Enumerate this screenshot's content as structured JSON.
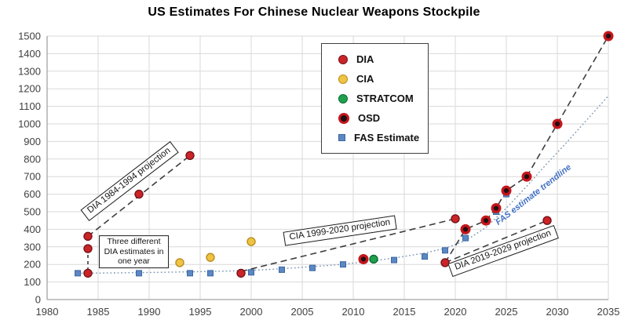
{
  "chart_data": {
    "type": "scatter",
    "title": "US Estimates For Chinese Nuclear Weapons Stockpile",
    "xlabel": "",
    "ylabel": "",
    "grid": true,
    "legend_position": "inside-top-center",
    "x_axis": {
      "min": 1980,
      "max": 2035,
      "tick_step": 5,
      "ticks": [
        1980,
        1985,
        1990,
        1995,
        2000,
        2005,
        2010,
        2015,
        2020,
        2025,
        2030,
        2035
      ]
    },
    "y_axis": {
      "min": 0,
      "max": 1500,
      "tick_step": 100,
      "ticks": [
        0,
        100,
        200,
        300,
        400,
        500,
        600,
        700,
        800,
        900,
        1000,
        1100,
        1200,
        1300,
        1400,
        1500
      ]
    },
    "colors": {
      "grid": "#d9d9d9",
      "axis": "#a3a3a3",
      "tick_text": "#404040",
      "projection_dash": "#3d3d3d",
      "trendline": "#7e99b6",
      "annotation_blue": "#4472c4"
    },
    "series": [
      {
        "name": "DIA",
        "marker": "circle",
        "color": "#cb2428",
        "edge": "#77131a",
        "points": [
          {
            "x": 1984,
            "y": 360
          },
          {
            "x": 1984,
            "y": 290
          },
          {
            "x": 1984,
            "y": 150
          },
          {
            "x": 1989,
            "y": 600
          },
          {
            "x": 1994,
            "y": 820
          },
          {
            "x": 1999,
            "y": 150
          },
          {
            "x": 2019,
            "y": 210
          },
          {
            "x": 2020,
            "y": 460
          },
          {
            "x": 2029,
            "y": 450
          }
        ]
      },
      {
        "name": "CIA",
        "marker": "circle",
        "color": "#efc343",
        "edge": "#bb8d20",
        "points": [
          {
            "x": 1993,
            "y": 210
          },
          {
            "x": 1996,
            "y": 240
          },
          {
            "x": 2000,
            "y": 330
          }
        ]
      },
      {
        "name": "STRATCOM",
        "marker": "circle",
        "color": "#1fa04d",
        "edge": "#0c6b33",
        "points": [
          {
            "x": 2012,
            "y": 230
          }
        ]
      },
      {
        "name": "OSD",
        "marker": "ring-circle",
        "color": "#200f12",
        "edge": "#c4161c",
        "points": [
          {
            "x": 2011,
            "y": 230
          },
          {
            "x": 2021,
            "y": 400
          },
          {
            "x": 2023,
            "y": 450
          },
          {
            "x": 2024,
            "y": 520
          },
          {
            "x": 2025,
            "y": 620
          },
          {
            "x": 2027,
            "y": 700
          },
          {
            "x": 2030,
            "y": 1000
          },
          {
            "x": 2035,
            "y": 1500
          }
        ]
      },
      {
        "name": "FAS Estimate",
        "marker": "square",
        "color": "#5b87c3",
        "edge": "#3c67a2",
        "points": [
          {
            "x": 1983,
            "y": 150
          },
          {
            "x": 1989,
            "y": 150
          },
          {
            "x": 1994,
            "y": 150
          },
          {
            "x": 1996,
            "y": 150
          },
          {
            "x": 2000,
            "y": 155
          },
          {
            "x": 2003,
            "y": 170
          },
          {
            "x": 2006,
            "y": 180
          },
          {
            "x": 2009,
            "y": 200
          },
          {
            "x": 2014,
            "y": 225
          },
          {
            "x": 2017,
            "y": 245
          },
          {
            "x": 2019,
            "y": 280
          },
          {
            "x": 2021,
            "y": 350
          },
          {
            "x": 2024,
            "y": 500
          },
          {
            "x": 2025,
            "y": 600
          }
        ]
      }
    ],
    "projection_lines": [
      {
        "name": "DIA 1984-1994 projection line",
        "dash": "8 5",
        "points": [
          [
            1984,
            360
          ],
          [
            1994,
            820
          ]
        ]
      },
      {
        "name": "DIA 1984 estimates connector",
        "dash": "4 4",
        "points": [
          [
            1984,
            290
          ],
          [
            1984,
            150
          ]
        ]
      },
      {
        "name": "CIA 1999-2020 projection line",
        "dash": "8 5",
        "points": [
          [
            1999,
            160
          ],
          [
            2020,
            460
          ]
        ]
      },
      {
        "name": "DIA 2019-2029 projection line",
        "dash": "8 5",
        "points": [
          [
            2019,
            210
          ],
          [
            2029,
            450
          ]
        ]
      },
      {
        "name": "OSD projection line",
        "dash": "8 5",
        "points": [
          [
            2019,
            210
          ],
          [
            2021,
            400
          ],
          [
            2023,
            450
          ],
          [
            2024,
            520
          ],
          [
            2025,
            620
          ],
          [
            2027,
            700
          ],
          [
            2030,
            1000
          ],
          [
            2035,
            1500
          ]
        ]
      }
    ],
    "trendline": {
      "name": "FAS estimate trendline",
      "dash": "1.8 2.8",
      "points": [
        [
          1983,
          150
        ],
        [
          1987,
          152
        ],
        [
          1991,
          155
        ],
        [
          1995,
          159
        ],
        [
          1999,
          164
        ],
        [
          2002,
          172
        ],
        [
          2005,
          183
        ],
        [
          2008,
          196
        ],
        [
          2011,
          213
        ],
        [
          2014,
          236
        ],
        [
          2017,
          265
        ],
        [
          2019,
          292
        ],
        [
          2021,
          335
        ],
        [
          2023,
          410
        ],
        [
          2025,
          520
        ],
        [
          2027,
          645
        ],
        [
          2029,
          775
        ],
        [
          2031,
          900
        ],
        [
          2033,
          1030
        ],
        [
          2035,
          1160
        ]
      ]
    },
    "annotations": [
      {
        "id": "dia-84-94-label",
        "text": "DIA 1984-1994 projection",
        "x": 1988.1,
        "y": 672,
        "angle": -37.5,
        "boxed": true,
        "font_size": 11.5
      },
      {
        "id": "three-estimates-label",
        "text": "Three different\nDIA estimates in\none year",
        "x": 1988.5,
        "y": 272,
        "angle": 0,
        "boxed": true,
        "font_size": 10.5
      },
      {
        "id": "cia-99-20-label",
        "text": "CIA 1999-2020 projection",
        "x": 2008.7,
        "y": 395,
        "angle": -8.5,
        "boxed": true,
        "font_size": 11.5
      },
      {
        "id": "dia-19-29-label",
        "text": "DIA 2019-2029 projection",
        "x": 2024.7,
        "y": 278,
        "angle": -20,
        "boxed": true,
        "font_size": 11.5
      },
      {
        "id": "fas-trendline-label",
        "text": "FAS estimate trendline",
        "x": 2027.7,
        "y": 592,
        "angle": -38,
        "boxed": false,
        "color": "#4472c4",
        "font_size": 11
      }
    ]
  }
}
